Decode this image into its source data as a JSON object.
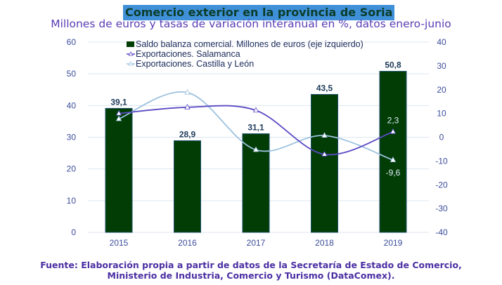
{
  "chart_data": {
    "type": "bar+line",
    "title": "Comercio exterior en la provincia de Soria",
    "subtitle": "Millones de euros y tasas de variación interanual en %, datos enero-junio",
    "categories": [
      "2015",
      "2016",
      "2017",
      "2018",
      "2019"
    ],
    "y_left": {
      "range": [
        0,
        60
      ],
      "ticks": [
        0,
        10,
        20,
        30,
        40,
        50,
        60
      ]
    },
    "y_right": {
      "range": [
        -40,
        40
      ],
      "ticks": [
        -40,
        -30,
        -20,
        -10,
        0,
        10,
        20,
        30,
        40
      ]
    },
    "grid": true,
    "legend_position": "top",
    "series": [
      {
        "name": "Saldo balanza comercial. Millones de euros (eje izquierdo)",
        "type": "bar",
        "axis": "left",
        "values": [
          39.1,
          28.9,
          31.1,
          43.5,
          50.8
        ],
        "labels": [
          "39,1",
          "28,9",
          "31,1",
          "43,5",
          "50,8"
        ],
        "color": "#023d05"
      },
      {
        "name": "Exportaciones. Salamanca",
        "type": "line",
        "axis": "right",
        "values": [
          10.0,
          12.6,
          11.3,
          -7.2,
          2.3
        ],
        "labels": [
          "",
          "",
          "",
          "",
          "2,3"
        ],
        "color": "#5b4bc4"
      },
      {
        "name": "Exportaciones. Castilla y León",
        "type": "line",
        "axis": "right",
        "values": [
          7.7,
          18.8,
          -5.3,
          0.7,
          -9.6
        ],
        "labels": [
          "",
          "",
          "",
          "",
          "-9,6"
        ],
        "color": "#9ec3e0"
      }
    ]
  },
  "footer": {
    "line1": "Fuente: Elaboración propia a partir de datos de la Secretaría de Estado de Comercio,",
    "line2": "Ministerio de Industria, Comercio y Turismo (DataComex)."
  }
}
